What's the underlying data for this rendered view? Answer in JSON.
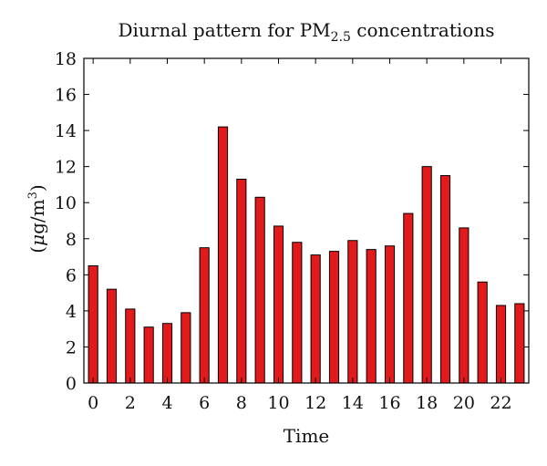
{
  "chart_data": {
    "type": "bar",
    "title_main": "Diurnal pattern for PM",
    "title_sub": "2.5",
    "title_rest": " concentrations",
    "xlabel": "Time",
    "ylabel_open": "(",
    "ylabel_mu": "μ",
    "ylabel_unit": "g/m",
    "ylabel_sup": "3",
    "ylabel_close": ")",
    "bar_color": "#e31a1c",
    "xlim": [
      -0.5,
      23.5
    ],
    "ylim": [
      0,
      18
    ],
    "x_ticks": [
      0,
      2,
      4,
      6,
      8,
      10,
      12,
      14,
      16,
      18,
      20,
      22
    ],
    "y_ticks": [
      0,
      2,
      4,
      6,
      8,
      10,
      12,
      14,
      16,
      18
    ],
    "categories": [
      0,
      1,
      2,
      3,
      4,
      5,
      6,
      7,
      8,
      9,
      10,
      11,
      12,
      13,
      14,
      15,
      16,
      17,
      18,
      19,
      20,
      21,
      22,
      23
    ],
    "values": [
      6.5,
      5.2,
      4.1,
      3.1,
      3.3,
      3.9,
      7.5,
      14.2,
      11.3,
      10.3,
      8.7,
      7.8,
      7.1,
      7.3,
      7.9,
      7.4,
      7.6,
      9.4,
      12.0,
      11.5,
      8.6,
      5.6,
      4.3,
      4.4
    ],
    "grid": false
  }
}
